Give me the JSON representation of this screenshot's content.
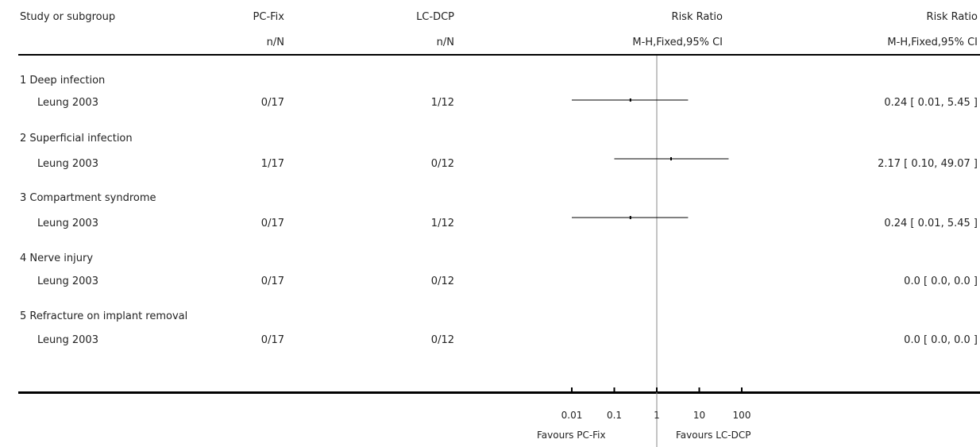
{
  "header": {
    "study_col": "Study or subgroup",
    "group1": "PC-Fix",
    "group1_sub": "n/N",
    "group2": "LC-DCP",
    "group2_sub": "n/N",
    "plot_title": "Risk Ratio",
    "plot_sub": "M-H,Fixed,95% CI",
    "est_title": "Risk Ratio",
    "est_sub": "M-H,Fixed,95% CI"
  },
  "subgroups": [
    {
      "label": "1 Deep infection",
      "study": "Leung 2003",
      "n1": "0/17",
      "n2": "1/12",
      "estimate": "0.24 [ 0.01, 5.45 ]"
    },
    {
      "label": "2 Superficial infection",
      "study": "Leung 2003",
      "n1": "1/17",
      "n2": "0/12",
      "estimate": "2.17 [ 0.10, 49.07 ]"
    },
    {
      "label": "3 Compartment syndrome",
      "study": "Leung 2003",
      "n1": "0/17",
      "n2": "1/12",
      "estimate": "0.24 [ 0.01, 5.45 ]"
    },
    {
      "label": "4 Nerve injury",
      "study": "Leung 2003",
      "n1": "0/17",
      "n2": "0/12",
      "estimate": "0.0 [ 0.0, 0.0 ]"
    },
    {
      "label": "5 Refracture on implant removal",
      "study": "Leung 2003",
      "n1": "0/17",
      "n2": "0/12",
      "estimate": "0.0 [ 0.0, 0.0 ]"
    }
  ],
  "footer": {
    "favours_left": "Favours PC-Fix",
    "favours_right": "Favours LC-DCP"
  },
  "chart_data": {
    "type": "forest",
    "scale": "log",
    "null_value": 1,
    "xlim": [
      0.01,
      100
    ],
    "tick_values": [
      0.01,
      0.1,
      1,
      10,
      100
    ],
    "tick_labels": [
      "0.01",
      "0.1",
      "1",
      "10",
      "100"
    ],
    "rows": [
      {
        "estimate": 0.24,
        "lower": 0.01,
        "upper": 5.45
      },
      {
        "estimate": 2.17,
        "lower": 0.1,
        "upper": 49.07
      },
      {
        "estimate": 0.24,
        "lower": 0.01,
        "upper": 5.45
      },
      {
        "estimate": null,
        "lower": null,
        "upper": null
      },
      {
        "estimate": null,
        "lower": null,
        "upper": null
      }
    ]
  }
}
